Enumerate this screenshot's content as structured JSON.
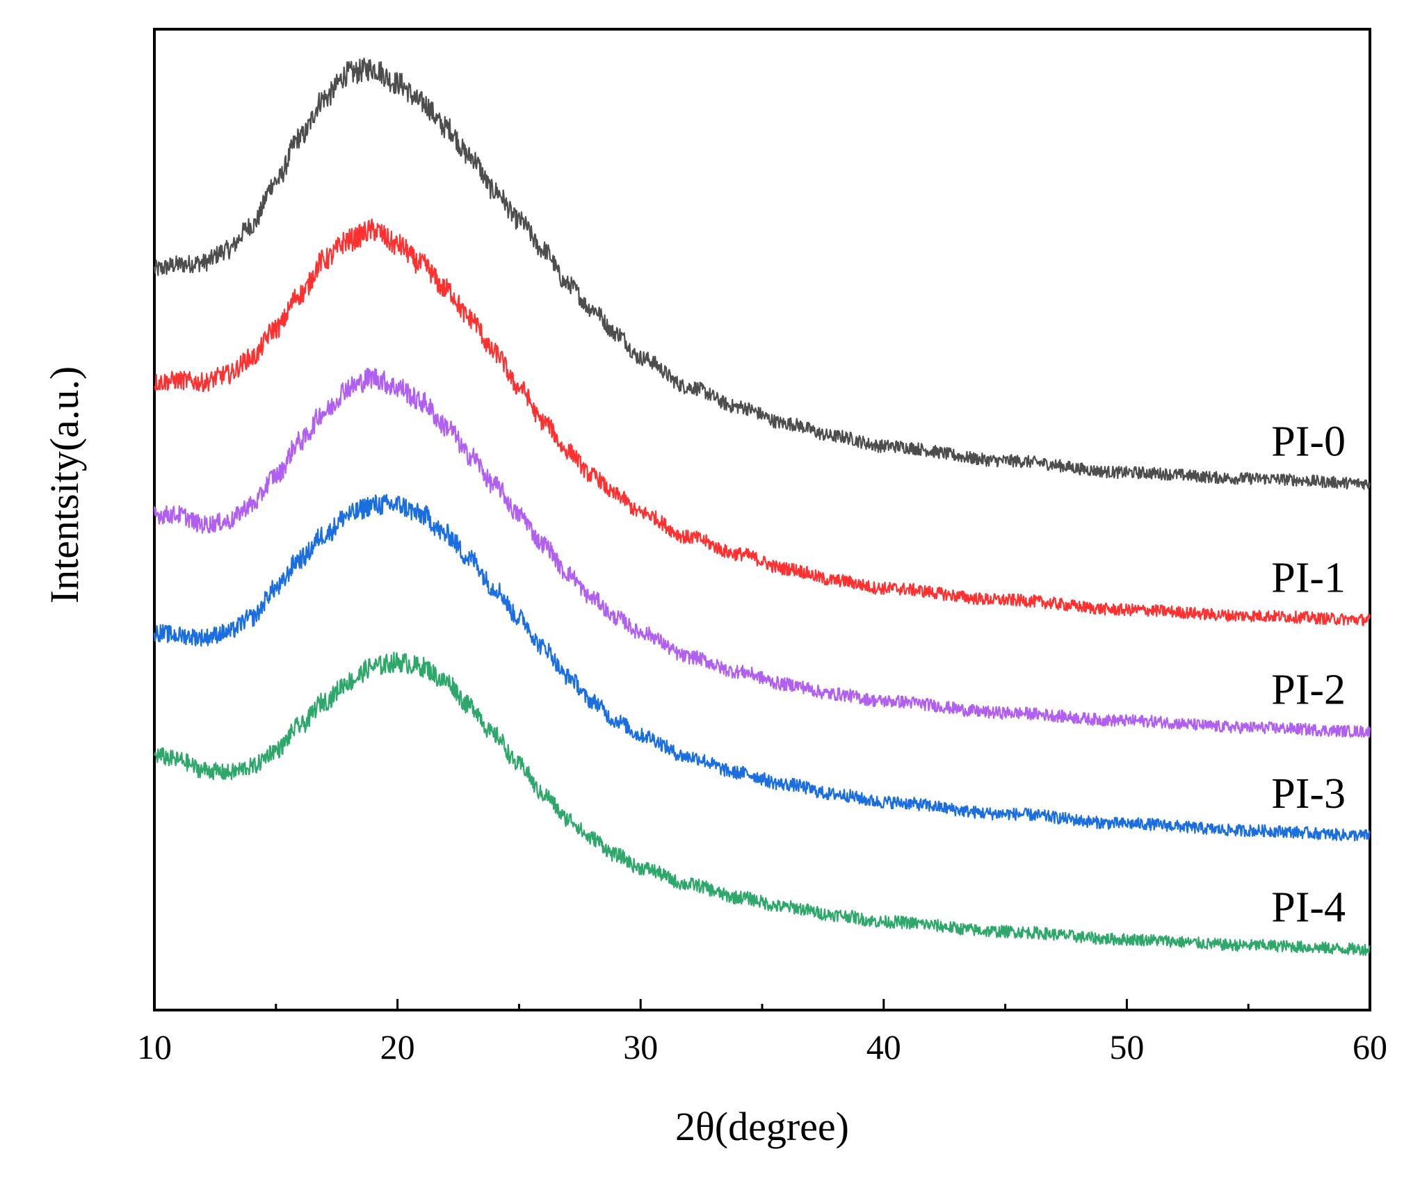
{
  "chart_data": {
    "type": "line",
    "title": "",
    "xlabel": "2θ(degree)",
    "ylabel": "Intentsity(a.u.)",
    "xlim": [
      10,
      60
    ],
    "ylim": [
      0,
      10
    ],
    "grid": false,
    "y_ticks_shown": false,
    "x_ticks": [
      10,
      20,
      30,
      40,
      50,
      60
    ],
    "x_tick_labels": [
      "10",
      "20",
      "30",
      "40",
      "50",
      "60"
    ],
    "x_minor_ticks": [
      15,
      25,
      35,
      45,
      55
    ],
    "legend": "inline labels at right end of each curve",
    "series": [
      {
        "name": "PI-0",
        "color": "#4d4d4d",
        "x": [
          10,
          11,
          12,
          13,
          14,
          15,
          16,
          17,
          18,
          19,
          20,
          21,
          22,
          23,
          24,
          25,
          26,
          27,
          28,
          29,
          30,
          32,
          34,
          36,
          38,
          40,
          45,
          50,
          55,
          60
        ],
        "y": [
          7.55,
          7.6,
          7.62,
          7.75,
          8.0,
          8.45,
          8.9,
          9.3,
          9.55,
          9.6,
          9.45,
          9.25,
          9.0,
          8.7,
          8.35,
          8.05,
          7.75,
          7.4,
          7.15,
          6.9,
          6.65,
          6.35,
          6.15,
          5.98,
          5.85,
          5.75,
          5.6,
          5.48,
          5.42,
          5.37
        ]
      },
      {
        "name": "PI-1",
        "color": "#ff3030",
        "x": [
          10,
          11,
          12,
          13,
          14,
          15,
          16,
          17,
          18,
          19,
          20,
          21,
          22,
          23,
          24,
          25,
          26,
          27,
          28,
          29,
          30,
          32,
          34,
          36,
          38,
          40,
          45,
          50,
          55,
          60
        ],
        "y": [
          6.4,
          6.42,
          6.4,
          6.48,
          6.65,
          6.95,
          7.3,
          7.65,
          7.85,
          7.95,
          7.8,
          7.6,
          7.35,
          7.05,
          6.7,
          6.35,
          6.0,
          5.7,
          5.45,
          5.25,
          5.07,
          4.82,
          4.65,
          4.5,
          4.38,
          4.3,
          4.18,
          4.08,
          4.02,
          3.98
        ]
      },
      {
        "name": "PI-2",
        "color": "#b05ff0",
        "x": [
          10,
          11,
          12,
          13,
          14,
          15,
          16,
          17,
          18,
          19,
          20,
          21,
          22,
          23,
          24,
          25,
          26,
          27,
          28,
          29,
          30,
          32,
          34,
          36,
          38,
          40,
          45,
          50,
          55,
          60
        ],
        "y": [
          5.05,
          5.05,
          4.95,
          4.98,
          5.15,
          5.45,
          5.8,
          6.1,
          6.35,
          6.45,
          6.35,
          6.2,
          5.95,
          5.65,
          5.35,
          5.05,
          4.75,
          4.45,
          4.2,
          4.0,
          3.85,
          3.6,
          3.45,
          3.32,
          3.22,
          3.15,
          3.03,
          2.95,
          2.88,
          2.84
        ]
      },
      {
        "name": "PI-3",
        "color": "#1a6ee0",
        "x": [
          10,
          11,
          12,
          13,
          14,
          15,
          16,
          17,
          18,
          19,
          20,
          21,
          22,
          23,
          24,
          25,
          26,
          27,
          28,
          29,
          30,
          32,
          34,
          36,
          38,
          40,
          45,
          50,
          55,
          60
        ],
        "y": [
          3.85,
          3.82,
          3.8,
          3.85,
          4.0,
          4.3,
          4.6,
          4.85,
          5.05,
          5.15,
          5.15,
          5.05,
          4.85,
          4.6,
          4.3,
          4.0,
          3.7,
          3.4,
          3.15,
          2.95,
          2.8,
          2.58,
          2.42,
          2.3,
          2.2,
          2.12,
          2.0,
          1.9,
          1.83,
          1.78
        ]
      },
      {
        "name": "PI-4",
        "color": "#2ea86a",
        "x": [
          10,
          11,
          12,
          13,
          14,
          15,
          16,
          17,
          18,
          19,
          20,
          21,
          22,
          23,
          24,
          25,
          26,
          27,
          28,
          29,
          30,
          32,
          34,
          36,
          38,
          40,
          45,
          50,
          55,
          60
        ],
        "y": [
          2.6,
          2.55,
          2.45,
          2.42,
          2.48,
          2.65,
          2.9,
          3.15,
          3.35,
          3.5,
          3.55,
          3.5,
          3.35,
          3.1,
          2.8,
          2.5,
          2.2,
          1.95,
          1.75,
          1.58,
          1.45,
          1.28,
          1.15,
          1.05,
          0.97,
          0.9,
          0.8,
          0.72,
          0.66,
          0.62
        ]
      }
    ]
  }
}
